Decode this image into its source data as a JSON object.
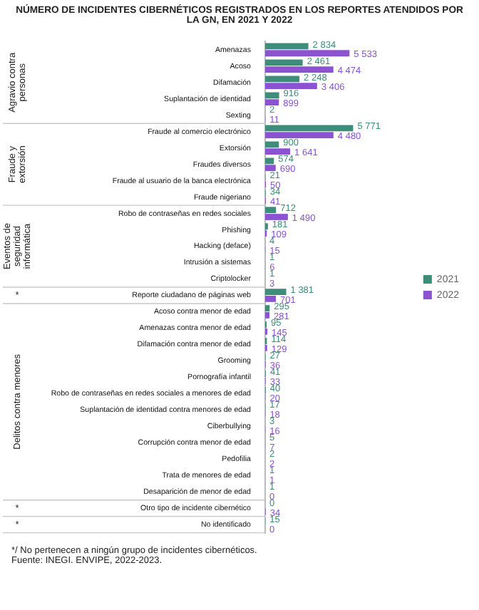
{
  "chart_data": {
    "type": "bar",
    "orientation": "horizontal",
    "title": "NÚMERO DE INCIDENTES CIBERNÉTICOS REGISTRADOS EN LOS REPORTES ATENDIDOS POR LA GN, EN 2021 Y 2022",
    "categories": [
      "Amenazas",
      "Acoso",
      "Difamación",
      "Suplantación de identidad",
      "Sexting",
      "Fraude al comercio electrónico",
      "Extorsión",
      "Fraudes diversos",
      "Fraude al usuario de la banca electrónica",
      "Fraude nigeriano",
      "Robo de contraseñas en redes sociales",
      "Phishing",
      "Hacking (deface)",
      "Intrusión a sistemas",
      "Criptolocker",
      "Reporte ciudadano de páginas web",
      "Acoso contra menor de edad",
      "Amenazas contra menor de edad",
      "Difamación contra menor de edad",
      "Grooming",
      "Pornografía infantil",
      "Robo de contraseñas en redes sociales a menores de edad",
      "Suplantación de identidad contra menores de edad",
      "Ciberbullying",
      "Corrupción contra menor de edad",
      "Pedofilia",
      "Trata de menores de edad",
      "Desaparición de menor de edad",
      "Otro tipo de incidente cibernético",
      "No identificado"
    ],
    "series": [
      {
        "name": "2021",
        "color": "#3e8c7a",
        "values": [
          2834,
          2461,
          2248,
          916,
          2,
          5771,
          900,
          574,
          21,
          34,
          712,
          181,
          4,
          1,
          1,
          1381,
          295,
          95,
          114,
          27,
          41,
          40,
          17,
          3,
          5,
          2,
          1,
          1,
          0,
          15
        ],
        "value_labels": [
          "2 834",
          "2 461",
          "2 248",
          "916",
          "2",
          "5 771",
          "900",
          "574",
          "21",
          "34",
          "712",
          "181",
          "4",
          "1",
          "1",
          "1 381",
          "295",
          "95",
          "114",
          "27",
          "41",
          "40",
          "17",
          "3",
          "5",
          "2",
          "1",
          "1",
          "0",
          "15"
        ]
      },
      {
        "name": "2022",
        "color": "#8b52d1",
        "values": [
          5533,
          4474,
          3406,
          899,
          11,
          4480,
          1641,
          690,
          50,
          41,
          1490,
          109,
          15,
          6,
          3,
          701,
          281,
          145,
          129,
          36,
          33,
          20,
          18,
          16,
          7,
          2,
          1,
          0,
          34,
          0
        ],
        "value_labels": [
          "5 533",
          "4 474",
          "3 406",
          "899",
          "11",
          "4 480",
          "1 641",
          "690",
          "50",
          "41",
          "1 490",
          "109",
          "15",
          "6",
          "3",
          "701",
          "281",
          "145",
          "129",
          "36",
          "33",
          "20",
          "18",
          "16",
          "7",
          "2",
          "1",
          "0",
          "34",
          "0"
        ]
      }
    ],
    "legend": "right",
    "annotations": [
      "Agravio contra personas",
      "Fraude y extorsión",
      "Eventos de seguridad informática",
      "*",
      "Delitos contra menores",
      "*",
      "*",
      "*/        No pertenecen a ningún grupo de incidentes cibernéticos.",
      "Fuente: INEGI. ENVIPE, 2022-2023."
    ]
  }
}
